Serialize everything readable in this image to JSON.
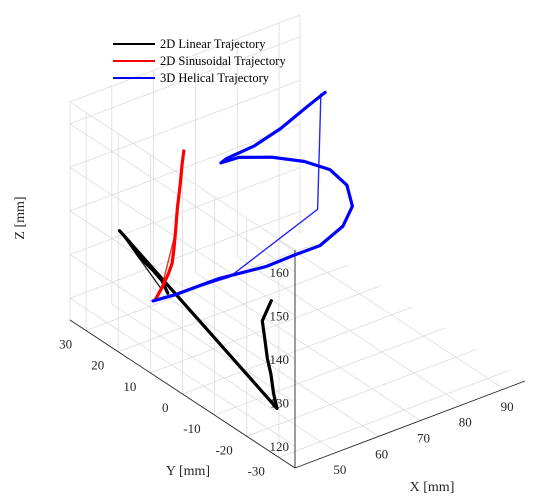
{
  "chart_data": {
    "type": "line",
    "projection": "3d",
    "xlabel": "X [mm]",
    "ylabel": "Y [mm]",
    "zlabel": "Z [mm]",
    "xlim": [
      40,
      95
    ],
    "ylim": [
      -35,
      35
    ],
    "zlim": [
      115,
      165
    ],
    "x_ticks": [
      "50",
      "60",
      "70",
      "80",
      "90"
    ],
    "y_ticks": [
      "-30",
      "-20",
      "-10",
      "0",
      "10",
      "20",
      "30"
    ],
    "z_ticks": [
      "120",
      "130",
      "140",
      "150",
      "160"
    ],
    "grid": true,
    "legend_position": "top-left",
    "colors": {
      "linear": "#000000",
      "sinusoidal": "#ff0000",
      "helical": "#0000ff"
    },
    "series": [
      {
        "name": "2D Linear Trajectory",
        "color": "#000000",
        "reference": {
          "x": [
            48,
            58
          ],
          "y": [
            30,
            30
          ],
          "z": [
            135,
            118
          ]
        },
        "measured": {
          "x": [
            72.0,
            66.0,
            62.0,
            58.0,
            55.0,
            51.0,
            48.0,
            48.0,
            50.0,
            52.0,
            55.0,
            57.0,
            58.0
          ],
          "y": [
            14.0,
            9.0,
            3.0,
            -3.0,
            -8.0,
            -14.0,
            -19.0,
            30.0,
            29.5,
            29.0,
            28.8,
            28.5,
            28.0
          ],
          "z": [
            118.0,
            118.0,
            118.0,
            118.0,
            118.0,
            118.0,
            118.0,
            135.0,
            132.0,
            128.0,
            124.0,
            121.0,
            118.0
          ]
        }
      },
      {
        "name": "2D Sinusoidal Trajectory",
        "color": "#ff0000",
        "reference": {
          "x": [
            48,
            51,
            55,
            58
          ],
          "y": [
            10,
            15,
            22,
            30
          ],
          "z": [
            163,
            152,
            135,
            118
          ]
        },
        "measured": {
          "x": [
            48.0,
            49.5,
            51.0,
            53.0,
            54.5,
            56.0,
            57.5,
            58.5,
            58.0,
            56.5
          ],
          "y": [
            10.0,
            12.5,
            15.0,
            18.5,
            21.0,
            23.5,
            26.0,
            28.5,
            29.5,
            30.0
          ],
          "z": [
            163.0,
            158.0,
            152.0,
            144.0,
            137.0,
            131.0,
            126.0,
            122.0,
            119.0,
            116.0
          ]
        }
      },
      {
        "name": "3D Helical Trajectory",
        "color": "#0000ff",
        "reference": {
          "x": [
            56,
            65,
            80,
            90
          ],
          "y": [
            30,
            18,
            10,
            22
          ],
          "z": [
            116,
            124,
            138,
            155
          ]
        },
        "measured": {
          "x": [
            56.0,
            60.0,
            67.0,
            73.0,
            76.0,
            79.0,
            83.0,
            86.0,
            87.0,
            86.0,
            83.0,
            79.0,
            75.0,
            73.0,
            76.0,
            81.0,
            85.0,
            89.0,
            91.0
          ],
          "y": [
            30.0,
            28.0,
            24.0,
            17.0,
            12.0,
            8.0,
            6.0,
            7.0,
            10.0,
            14.0,
            18.0,
            23.0,
            28.0,
            31.0,
            33.0,
            31.0,
            28.0,
            25.0,
            22.0
          ],
          "z": [
            116.0,
            117.0,
            120.0,
            124.0,
            128.0,
            131.0,
            135.0,
            138.0,
            141.0,
            143.0,
            144.0,
            144.0,
            143.0,
            141.0,
            140.0,
            142.0,
            146.0,
            151.0,
            155.0
          ]
        }
      }
    ]
  }
}
